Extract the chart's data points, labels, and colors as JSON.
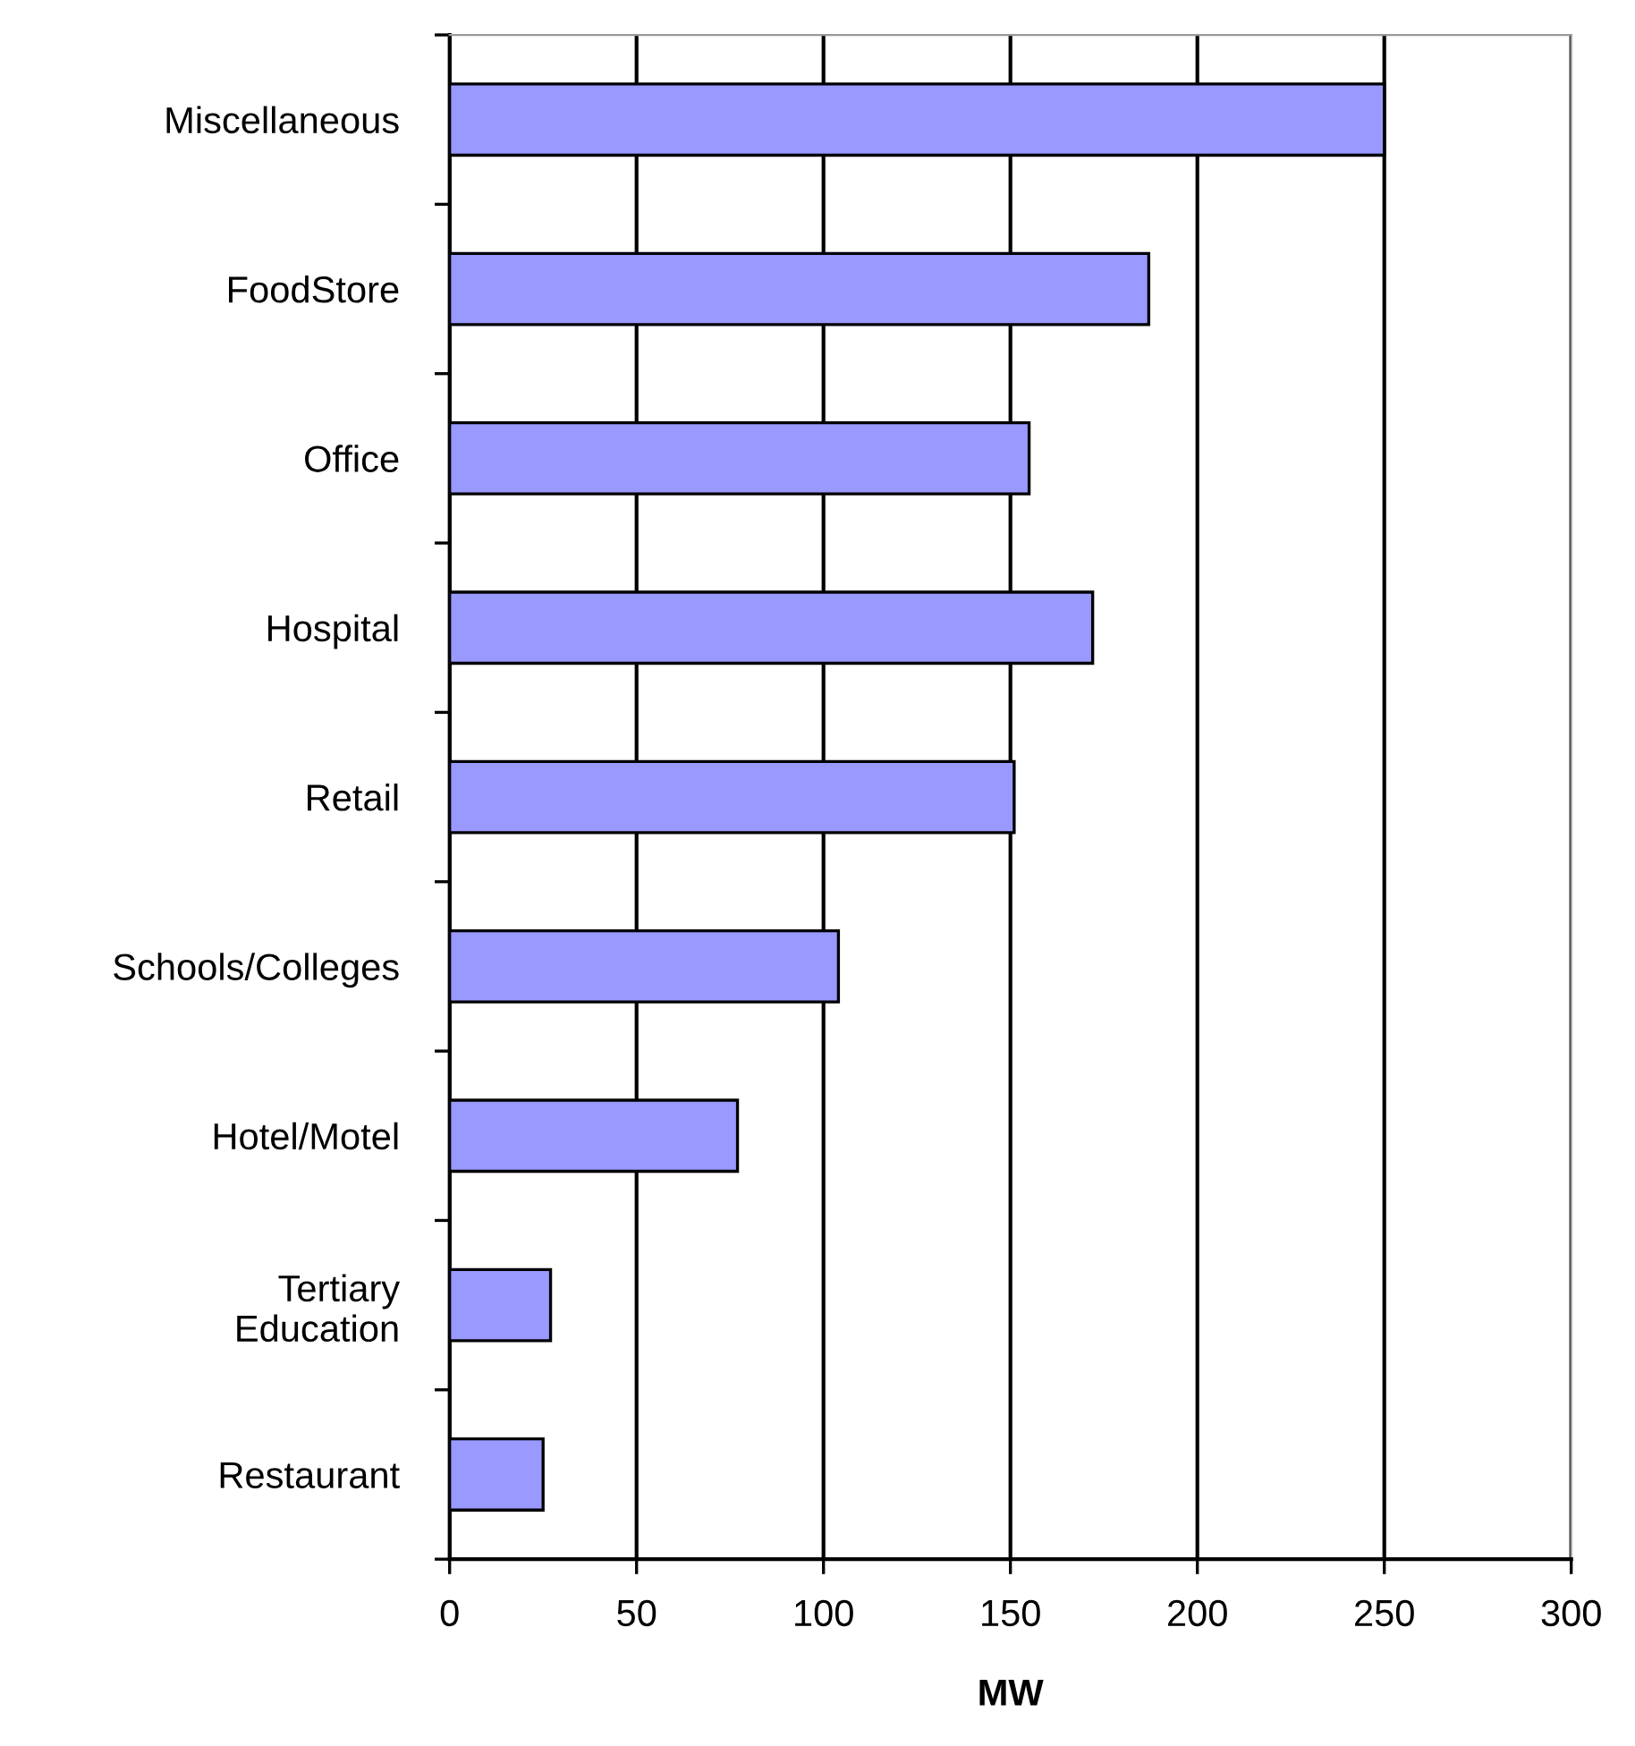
{
  "chart_data": {
    "type": "bar",
    "orientation": "horizontal",
    "xlabel": "MW",
    "categories": [
      "Miscellaneous",
      "FoodStore",
      "Office",
      "Hospital",
      "Retail",
      "Schools/Colleges",
      "Hotel/Motel",
      "Tertiary\nEducation",
      "Restaurant"
    ],
    "values": [
      250,
      187,
      155,
      172,
      151,
      104,
      77,
      27,
      25
    ],
    "color": "#9999ff",
    "xlim": [
      0,
      300
    ],
    "xticks": [
      0,
      50,
      100,
      150,
      200,
      250,
      300
    ],
    "grid": "x"
  }
}
